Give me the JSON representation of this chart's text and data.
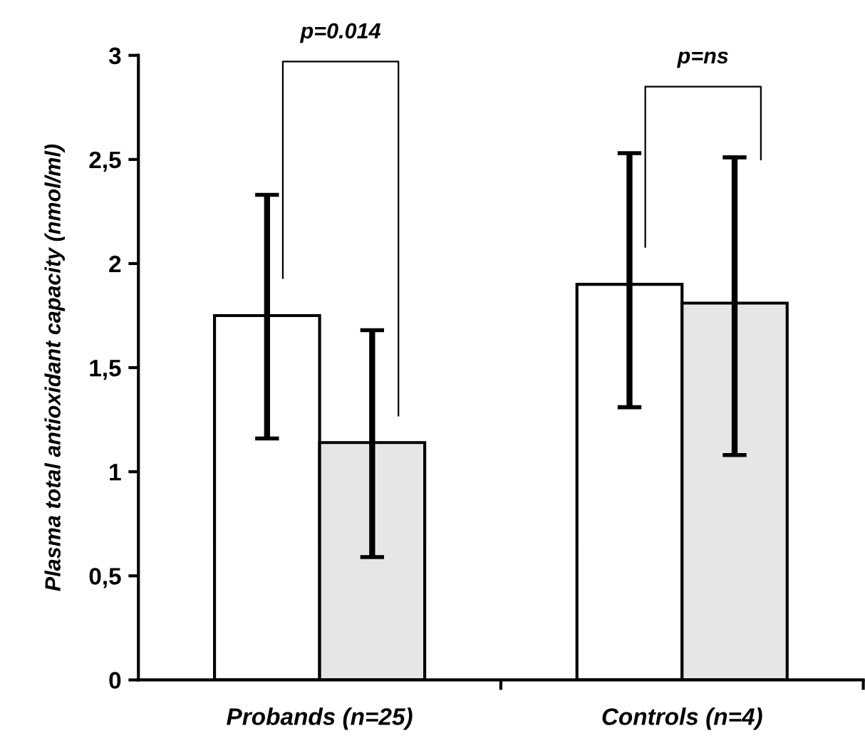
{
  "chart_data": {
    "type": "bar",
    "ylabel": "Plasma total antioxidant capacity (nmol/ml)",
    "categories": [
      "Probands (n=25)",
      "Controls (n=4)"
    ],
    "series": [
      {
        "color": "#ffffff",
        "values": [
          1.75,
          1.9
        ],
        "errors": [
          [
            1.16,
            2.33
          ],
          [
            1.31,
            2.53
          ]
        ]
      },
      {
        "color": "#e6e6e6",
        "values": [
          1.14,
          1.81
        ],
        "errors": [
          [
            0.59,
            1.68
          ],
          [
            1.08,
            2.51
          ]
        ]
      }
    ],
    "ylim": [
      0,
      3
    ],
    "yticks": [
      0,
      {
        "value": 0.5,
        "label": "0,5"
      },
      1,
      {
        "value": 1.5,
        "label": "1,5"
      },
      2,
      {
        "value": 2.5,
        "label": "2,5"
      },
      3
    ],
    "grid": false,
    "legend": false,
    "annotations": [
      "p=0.014",
      "p=ns"
    ]
  }
}
